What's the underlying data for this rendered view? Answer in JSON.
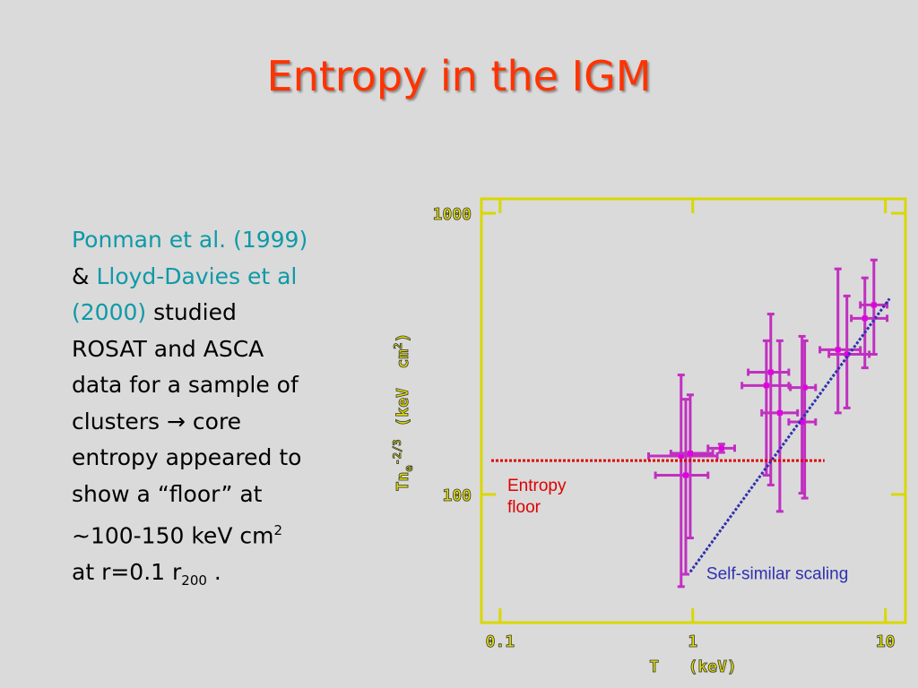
{
  "title": "Entropy in the IGM",
  "body": [
    "Ponman et al. (1999)",
    "&",
    "Lloyd-Davies et al",
    "(2000)",
    "studied",
    "ROSAT and ASCA",
    "data for a sample of",
    "clusters",
    "→",
    "core",
    "entropy appeared to",
    "show a “floor” at",
    "~100-150 keV cm",
    "2",
    "at r=0.1 r",
    "200",
    "."
  ],
  "chart_data": {
    "type": "errorbar",
    "xlabel": "T   (keV)",
    "ylabel_parts": [
      "Tn",
      "e",
      "-2/3",
      "(keV  cm",
      "2",
      ")"
    ],
    "xscale": "log",
    "yscale": "log",
    "xlim": [
      0.08,
      12.7
    ],
    "ylim": [
      35,
      1125
    ],
    "xticks": [
      0.1,
      1,
      10
    ],
    "yticks": [
      100,
      1000
    ],
    "frame_color": "#d8d800",
    "series": [
      {
        "color": "#e000e0",
        "bar_color": "#c030c0",
        "x": [
          0.87,
          0.92,
          0.97,
          1.41,
          2.41,
          2.54,
          2.83,
          3.81,
          3.69,
          5.67,
          6.31,
          7.82,
          8.71
        ],
        "x_low": [
          0.59,
          0.64,
          0.77,
          1.2,
          1.8,
          1.94,
          2.28,
          3.21,
          3.15,
          4.57,
          5.09,
          6.65,
          7.41
        ],
        "x_high": [
          1.34,
          1.2,
          1.27,
          1.65,
          3.15,
          3.15,
          3.5,
          4.34,
          4.34,
          7.41,
          8.24,
          10.2,
          10.2
        ],
        "y": [
          137,
          117,
          140,
          146,
          244,
          272,
          195,
          240,
          181,
          327,
          315,
          423,
          472
        ],
        "y_low": [
          47,
          52,
          70,
          141,
          117,
          108,
          87,
          97,
          101,
          195,
          203,
          282,
          315
        ],
        "y_high": [
          266,
          218,
          226,
          151,
          352,
          438,
          352,
          352,
          365,
          634,
          508,
          589,
          682
        ]
      }
    ],
    "reference_lines": [
      {
        "label_lines": [
          "Entropy",
          "floor"
        ],
        "color": "#e00000",
        "x": [
          0.09,
          4.83
        ],
        "y": [
          132,
          132
        ]
      },
      {
        "label_lines": [
          "Self-similar scaling"
        ],
        "color": "#3030b0",
        "x": [
          0.97,
          10.5
        ],
        "y": [
          53,
          497
        ]
      }
    ]
  }
}
